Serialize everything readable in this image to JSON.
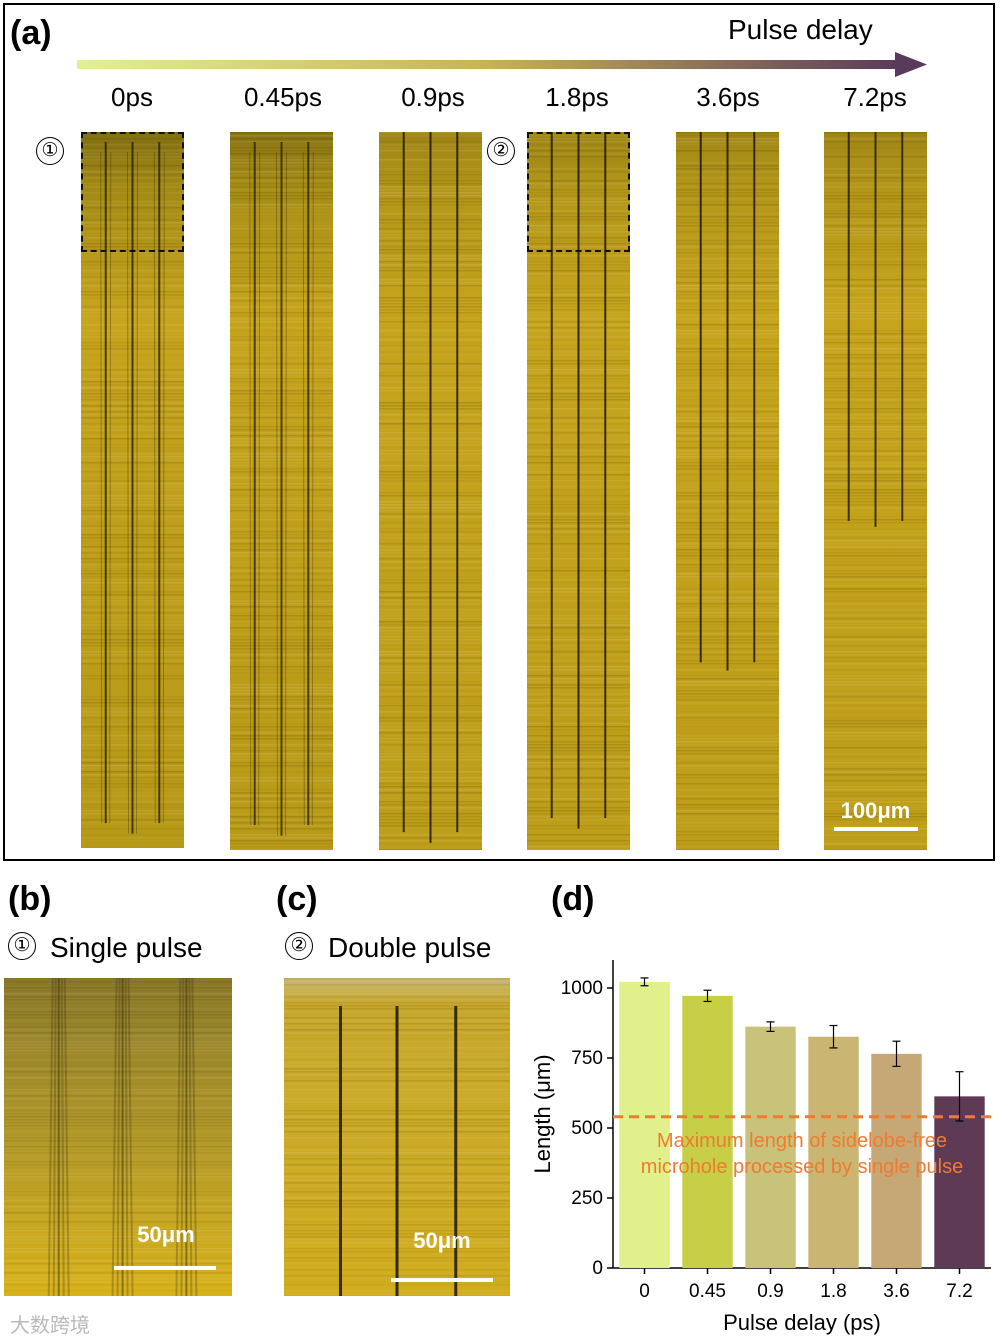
{
  "panel_a": {
    "label": "(a)",
    "arrow_label": "Pulse delay",
    "delays": [
      "0ps",
      "0.45ps",
      "0.9ps",
      "1.8ps",
      "3.6ps",
      "7.2ps"
    ],
    "markers": [
      "①",
      "②"
    ],
    "scale_bar": "100μm",
    "colors": {
      "arrow_start": "#e2ef9a",
      "arrow_mid": "#c8b257",
      "arrow_end": "#5a3a5a",
      "strip_base": "#c6a41c"
    }
  },
  "panel_b": {
    "label": "(b)",
    "marker": "①",
    "title": "Single pulse",
    "scale_bar": "50μm"
  },
  "panel_c": {
    "label": "(c)",
    "marker": "②",
    "title": "Double pulse",
    "scale_bar": "50μm"
  },
  "panel_d": {
    "label": "(d)"
  },
  "chart_data": {
    "type": "bar",
    "categories": [
      "0",
      "0.45",
      "0.9",
      "1.8",
      "3.6",
      "7.2"
    ],
    "values": [
      1022,
      972,
      862,
      826,
      765,
      613
    ],
    "errors": [
      14,
      20,
      17,
      40,
      45,
      88
    ],
    "xlabel": "Pulse delay (ps)",
    "ylabel": "Length (μm)",
    "ylim": [
      0,
      1100
    ],
    "yticks": [
      0,
      250,
      500,
      750,
      1000
    ],
    "bar_colors": [
      "#e1f08a",
      "#c6cf45",
      "#c9c27a",
      "#cbb572",
      "#c6a776",
      "#5e3a55"
    ],
    "reference_line": {
      "value": 540,
      "color": "#f07a30",
      "label": "Maximum length of sidelobe-free microhole processed by single pulse"
    },
    "grid": false,
    "legend": "none"
  },
  "watermark": "大数跨境"
}
